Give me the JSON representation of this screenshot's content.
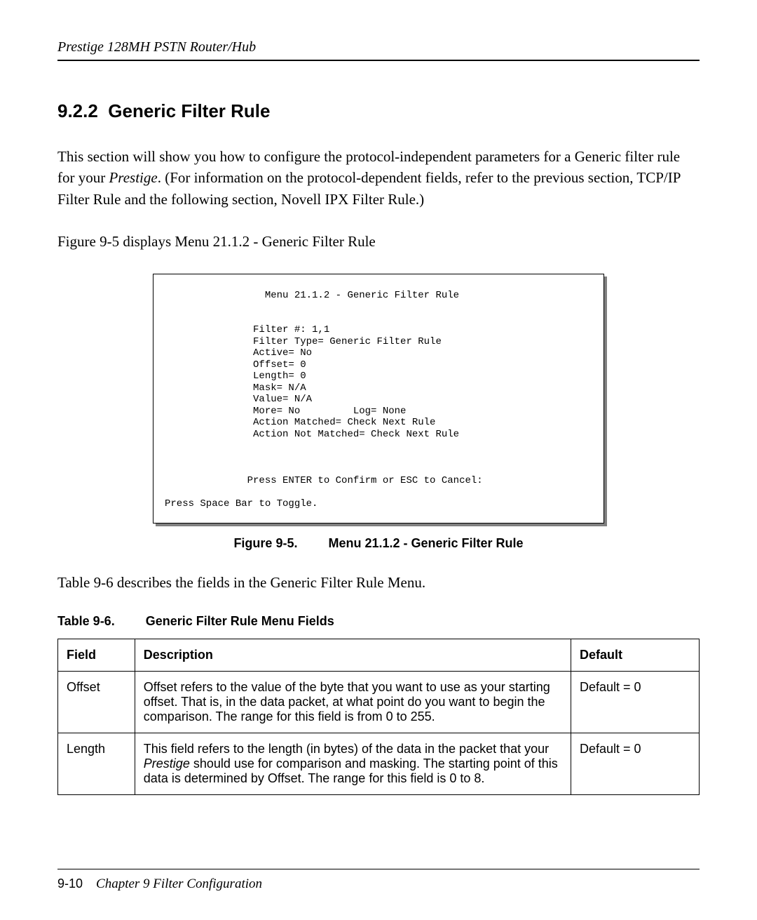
{
  "header": {
    "text": "Prestige 128MH    PSTN Router/Hub"
  },
  "section": {
    "number": "9.2.2",
    "title": "Generic Filter Rule"
  },
  "paragraph1_a": "This section will show you how to configure the protocol-independent parameters for a Generic filter rule for your ",
  "paragraph1_b_italic": "Prestige",
  "paragraph1_c": ". (For information on the protocol-dependent fields, refer to the previous section, TCP/IP Filter Rule and the following section, Novell IPX Filter Rule.)",
  "paragraph2": "Figure 9-5 displays Menu 21.1.2 - Generic Filter Rule",
  "terminal": {
    "lines": [
      "                 Menu 21.1.2 - Generic Filter Rule",
      "",
      "",
      "               Filter #: 1,1",
      "               Filter Type= Generic Filter Rule",
      "               Active= No",
      "               Offset= 0",
      "               Length= 0",
      "               Mask= N/A",
      "               Value= N/A",
      "               More= No         Log= None",
      "               Action Matched= Check Next Rule",
      "               Action Not Matched= Check Next Rule",
      "",
      "",
      "",
      "              Press ENTER to Confirm or ESC to Cancel:",
      "",
      "Press Space Bar to Toggle."
    ]
  },
  "figure_caption": {
    "label": "Figure 9-5.",
    "title": "Menu 21.1.2 - Generic Filter Rule"
  },
  "paragraph3": "Table 9-6 describes the fields in the Generic Filter Rule Menu.",
  "table_caption": {
    "label": "Table 9-6.",
    "title": "Generic Filter Rule Menu Fields"
  },
  "table": {
    "headers": {
      "field": "Field",
      "description": "Description",
      "default": "Default"
    },
    "rows": [
      {
        "field": "Offset",
        "description": "Offset refers to the value of the byte that you want to use as your starting offset. That is, in the data packet, at what point do you want to begin the comparison. The range for this field is from 0 to 255.",
        "default": "Default = 0"
      },
      {
        "field": "Length",
        "desc_a": "This field refers to the length (in bytes) of the data in the packet that your ",
        "desc_b_italic": "Prestige",
        "desc_c": " should use for comparison and masking. The starting point of this data is determined by Offset. The range for this field is 0 to 8.",
        "default": "Default = 0"
      }
    ]
  },
  "footer": {
    "page_number": "9-10",
    "chapter": "Chapter 9 Filter Configuration"
  }
}
